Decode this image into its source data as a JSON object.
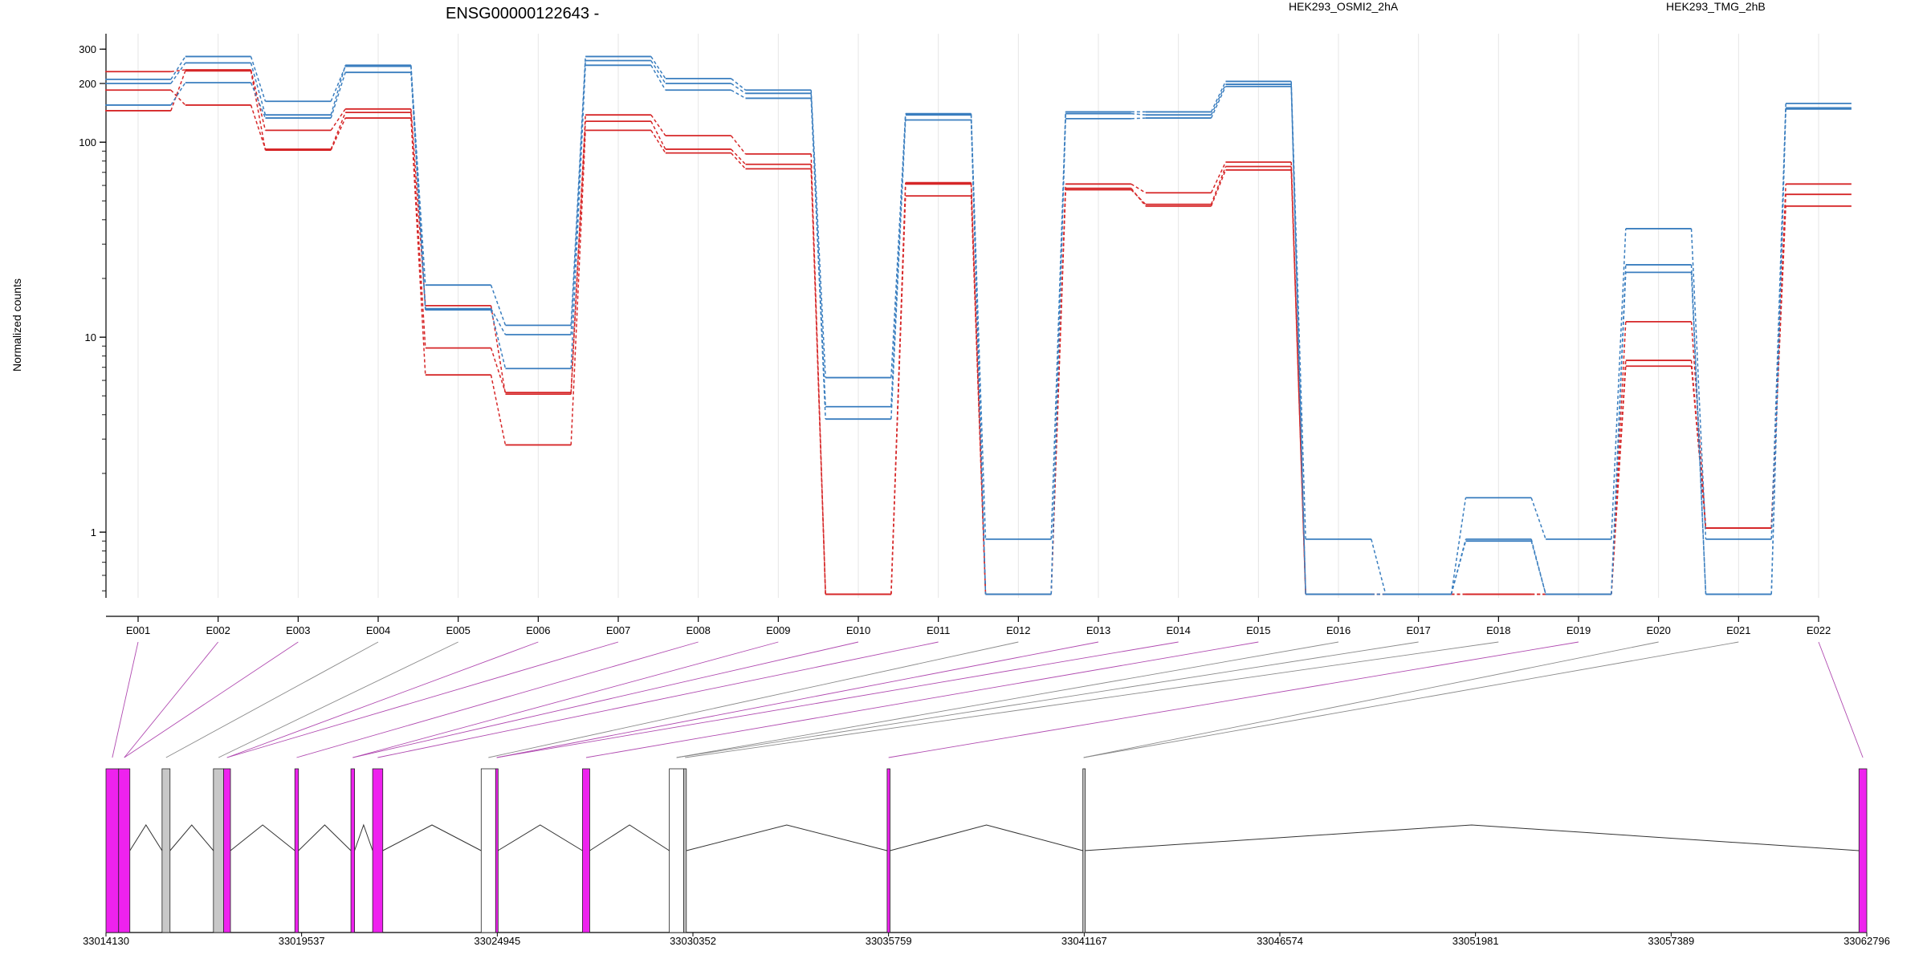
{
  "chart_data": {
    "type": "line",
    "title": "ENSG00000122643 -",
    "xlabel": "",
    "ylabel": "Normalized counts",
    "y_scale": "log",
    "ylim": [
      0.46,
      360
    ],
    "y_ticks": [
      "1",
      "10",
      "100",
      "200",
      "300"
    ],
    "categories": [
      "E001",
      "E002",
      "E003",
      "E004",
      "E005",
      "E006",
      "E007",
      "E008",
      "E009",
      "E010",
      "E011",
      "E012",
      "E013",
      "E014",
      "E015",
      "E016",
      "E017",
      "E018",
      "E019",
      "E020",
      "E021",
      "E022"
    ],
    "legend": [
      {
        "name": "HEK293_OSMI2_2hA",
        "color": "#d62728"
      },
      {
        "name": "HEK293_TMG_2hB",
        "color": "#3a7ebf"
      }
    ],
    "series": [
      {
        "group": "HEK293_OSMI2_2hA",
        "color": "#d62728",
        "values": [
          230,
          235,
          115,
          148,
          14.5,
          5.1,
          138,
          108,
          87,
          0.48,
          62,
          0.48,
          61,
          55,
          79,
          0.48,
          0.48,
          0.48,
          0.48,
          12,
          1.05,
          61
        ]
      },
      {
        "group": "HEK293_OSMI2_2hA",
        "color": "#d62728",
        "values": [
          185,
          155,
          92,
          142,
          8.8,
          5.2,
          128,
          92,
          77,
          0.48,
          61,
          0.48,
          57,
          48,
          75,
          0.48,
          0.48,
          0.48,
          0.48,
          7.6,
          1.05,
          54
        ]
      },
      {
        "group": "HEK293_OSMI2_2hA",
        "color": "#d62728",
        "values": [
          145,
          232,
          91,
          133,
          6.4,
          2.8,
          115,
          88,
          73,
          0.48,
          53,
          0.48,
          58,
          47,
          72,
          0.48,
          0.48,
          0.48,
          0.48,
          7.1,
          1.05,
          47
        ]
      },
      {
        "group": "HEK293_TMG_2hB",
        "color": "#3a7ebf",
        "values": [
          210,
          275,
          162,
          245,
          18.5,
          11.5,
          275,
          212,
          185,
          6.2,
          140,
          0.92,
          143,
          143,
          205,
          0.92,
          0.48,
          1.5,
          0.92,
          36,
          0.92,
          158
        ]
      },
      {
        "group": "HEK293_TMG_2hB",
        "color": "#3a7ebf",
        "values": [
          200,
          255,
          138,
          248,
          14,
          10.3,
          262,
          200,
          178,
          4.4,
          138,
          0.48,
          140,
          138,
          198,
          0.48,
          0.48,
          0.92,
          0.48,
          23.5,
          0.48,
          150
        ]
      },
      {
        "group": "HEK293_TMG_2hB",
        "color": "#3a7ebf",
        "values": [
          155,
          202,
          133,
          228,
          13.8,
          6.9,
          248,
          185,
          168,
          3.8,
          130,
          0.48,
          132,
          133,
          193,
          0.48,
          0.48,
          0.9,
          0.48,
          21.5,
          0.48,
          148
        ]
      }
    ],
    "gene_model": {
      "axis_ticks": [
        "33014130",
        "33019537",
        "33024945",
        "33030352",
        "33035759",
        "33041167",
        "33046574",
        "33051981",
        "33057389",
        "33062796"
      ],
      "exons": [
        {
          "id": "E001",
          "start": 33014130,
          "end": 33014480,
          "color": "#ee22ee"
        },
        {
          "id": "E002",
          "start": 33014480,
          "end": 33014790,
          "color": "#ee22ee"
        },
        {
          "id": "E003",
          "start": 33015680,
          "end": 33015900,
          "color": "#c8c8c8"
        },
        {
          "id": "E004",
          "start": 33017100,
          "end": 33017380,
          "color": "#c8c8c8"
        },
        {
          "id": "E005",
          "start": 33017380,
          "end": 33017570,
          "color": "#ee22ee"
        },
        {
          "id": "E006",
          "start": 33019350,
          "end": 33019450,
          "color": "#ee22ee"
        },
        {
          "id": "E007",
          "start": 33020900,
          "end": 33021000,
          "color": "#ee22ee"
        },
        {
          "id": "E008",
          "start": 33021500,
          "end": 33021780,
          "color": "#ee22ee"
        },
        {
          "id": "E009",
          "start": 33024500,
          "end": 33024900,
          "color": "#ffffff"
        },
        {
          "id": "E010",
          "start": 33024900,
          "end": 33024960,
          "color": "#ee22ee"
        },
        {
          "id": "E011",
          "start": 33027300,
          "end": 33027500,
          "color": "#ee22ee"
        },
        {
          "id": "E012",
          "start": 33029700,
          "end": 33030100,
          "color": "#ffffff"
        },
        {
          "id": "E013",
          "start": 33030100,
          "end": 33030170,
          "color": "#c8c8c8"
        },
        {
          "id": "E014",
          "start": 33035720,
          "end": 33035800,
          "color": "#ee22ee"
        },
        {
          "id": "E015",
          "start": 33041130,
          "end": 33041170,
          "color": "#c8c8c8"
        },
        {
          "id": "E016",
          "start": 33062580,
          "end": 33062796,
          "color": "#ee22ee"
        }
      ]
    }
  }
}
